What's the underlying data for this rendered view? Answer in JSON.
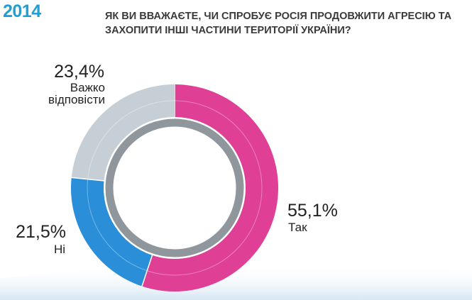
{
  "header": {
    "year": "2014",
    "title": "ЯК ВИ ВВАЖАЄТЕ, ЧИ СПРОБУЄ РОСІЯ ПРОДОВЖИТИ АГРЕСІЮ ТА ЗАХОПИТИ ІНШІ ЧАСТИНИ ТЕРИТОРІЇ УКРАЇНИ?"
  },
  "colors": {
    "accent": "#1f9fd6",
    "slice_yes": "#df3f95",
    "slice_no": "#2a8fd8",
    "slice_hard": "#c6cfd5",
    "inner_ring": "#8f979d"
  },
  "chart_data": {
    "type": "pie",
    "variant": "donut",
    "start": "12 o'clock",
    "direction": "clockwise",
    "slices": [
      {
        "label": "Так",
        "value": 55.1,
        "display": "55,1%",
        "color": "#df3f95"
      },
      {
        "label": "Ні",
        "value": 21.5,
        "display": "21,5%",
        "color": "#2a8fd8"
      },
      {
        "label": "Важко відповісти",
        "label_lines": [
          "Важко",
          "відповісти"
        ],
        "value": 23.4,
        "display": "23,4%",
        "color": "#c6cfd5"
      }
    ]
  }
}
